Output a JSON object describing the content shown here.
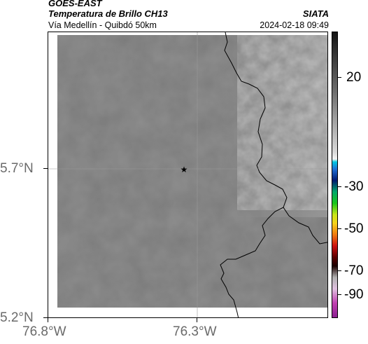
{
  "header": {
    "satellite": "GOES-EAST",
    "product": "Temperatura de Brillo CH13",
    "route": "Vía Medellín - Quibdó 50km",
    "agency": "SIATA",
    "timestamp": "2024-02-18 09:49"
  },
  "axes": {
    "lat_labels": [
      "5.7°N",
      "5.2°N"
    ],
    "lon_labels": [
      "76.8°W",
      "76.3°W"
    ]
  },
  "colorbar": {
    "tick_labels": [
      "20",
      "-30",
      "-50",
      "-70",
      "-90"
    ]
  },
  "colors": {
    "base_gray": "#7a7a7a",
    "border_line": "#000000"
  }
}
